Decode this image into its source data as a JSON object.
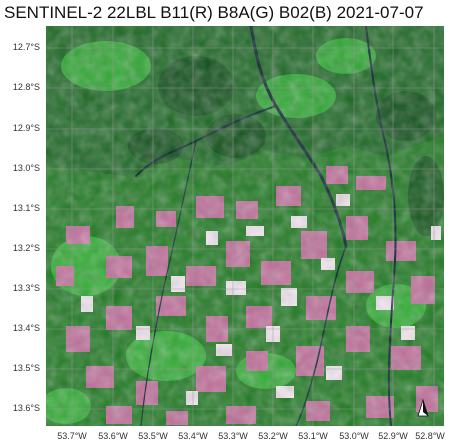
{
  "title": "SENTINEL-2 22LBL B11(R) B8A(G) B02(B) 2021-07-07",
  "axes": {
    "y_labels": [
      "12.7°S",
      "12.8°S",
      "12.9°S",
      "13.0°S",
      "13.1°S",
      "13.2°S",
      "13.3°S",
      "13.4°S",
      "13.5°S",
      "13.6°S"
    ],
    "x_labels": [
      "53.7°W",
      "53.6°W",
      "53.5°W",
      "53.4°W",
      "53.3°W",
      "53.2°W",
      "53.1°W",
      "53.0°W",
      "52.9°W",
      "52.8°W"
    ]
  },
  "colors": {
    "forest": "#1f7a22",
    "forest_bright": "#37c23a",
    "forest_dark": "#0e4a18",
    "cleared": "#c06e9a",
    "bare": "#f2e6f0",
    "water": "#0a2230",
    "grid": "#9a9a9a"
  }
}
